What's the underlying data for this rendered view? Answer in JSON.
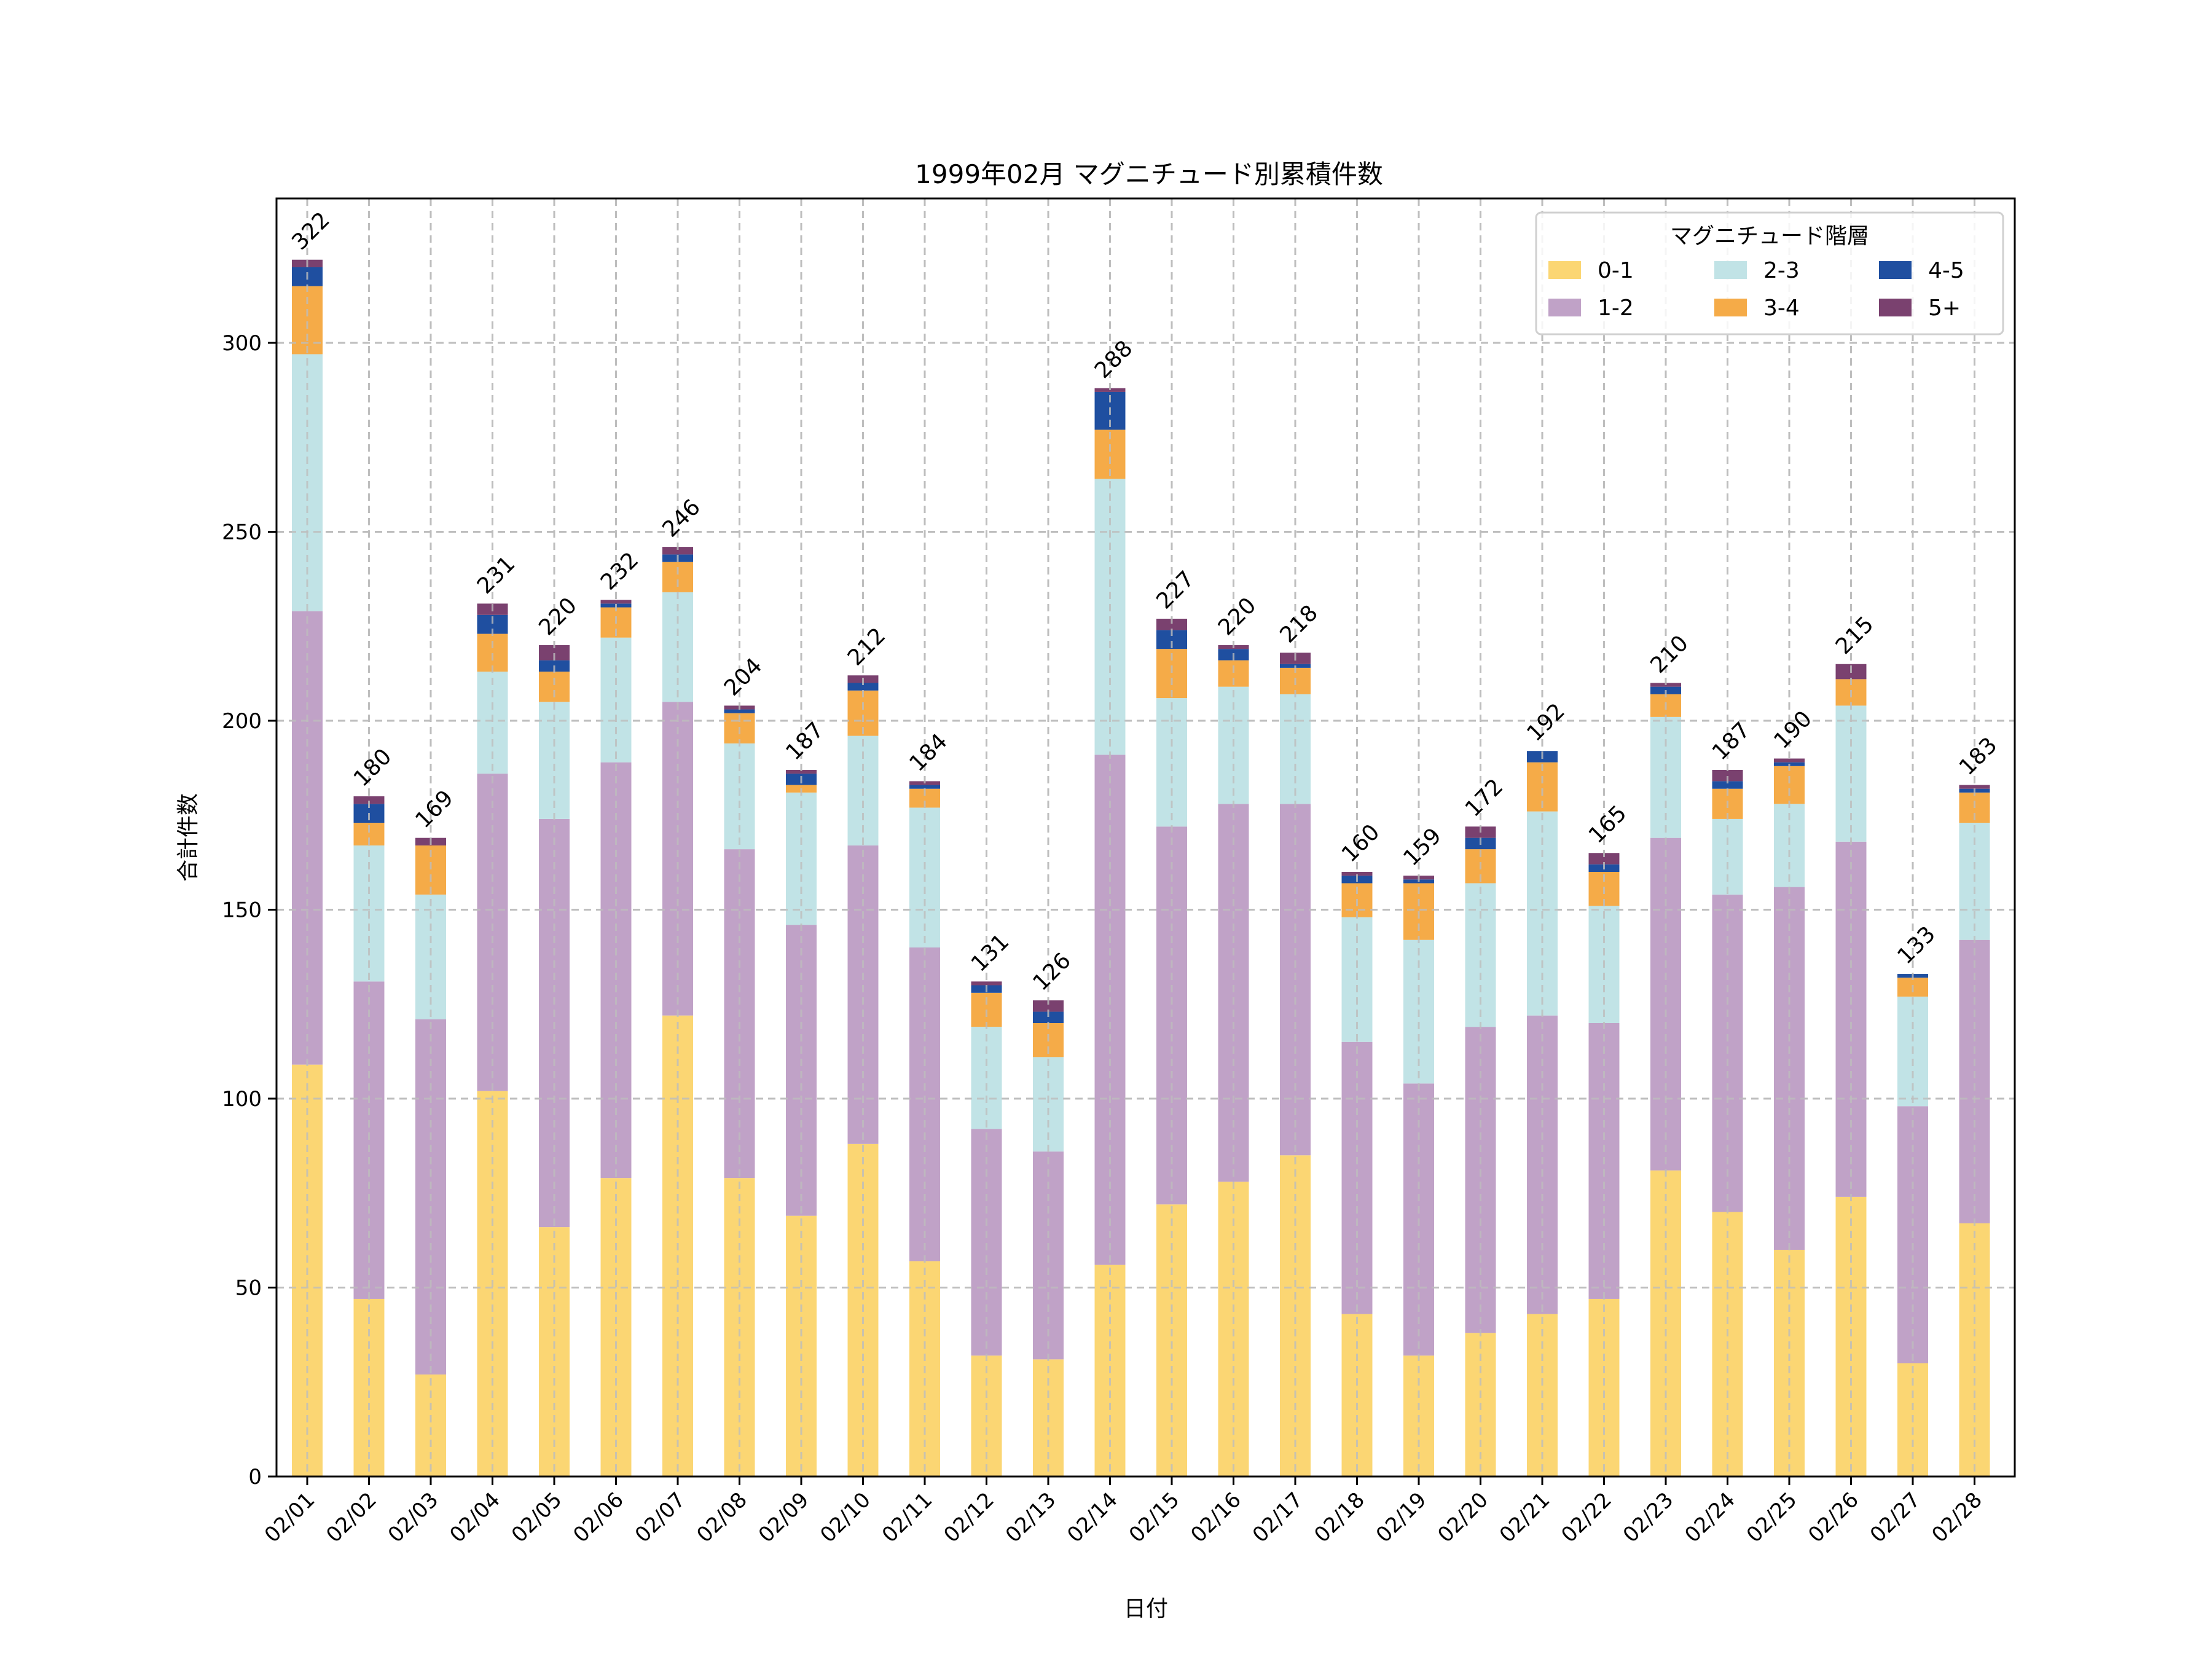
{
  "chart_data": {
    "type": "bar",
    "stacked": true,
    "title": "1999年02月 マグニチュード別累積件数",
    "xlabel": "日付",
    "ylabel": "合計件数",
    "ylim": [
      0,
      338
    ],
    "yticks": [
      0,
      50,
      100,
      150,
      200,
      250,
      300
    ],
    "grid": true,
    "legend": {
      "title": "マグニチュード階層",
      "placement": "top-right",
      "columns": 3
    },
    "categories": [
      "02/01",
      "02/02",
      "02/03",
      "02/04",
      "02/05",
      "02/06",
      "02/07",
      "02/08",
      "02/09",
      "02/10",
      "02/11",
      "02/12",
      "02/13",
      "02/14",
      "02/15",
      "02/16",
      "02/17",
      "02/18",
      "02/19",
      "02/20",
      "02/21",
      "02/22",
      "02/23",
      "02/24",
      "02/25",
      "02/26",
      "02/27",
      "02/28"
    ],
    "series": [
      {
        "name": "0-1",
        "color": "#FBD673",
        "values": [
          109,
          47,
          27,
          102,
          66,
          79,
          122,
          79,
          69,
          88,
          57,
          32,
          31,
          56,
          72,
          78,
          85,
          43,
          32,
          38,
          43,
          47,
          81,
          70,
          60,
          74,
          30,
          67
        ]
      },
      {
        "name": "1-2",
        "color": "#C0A2C7",
        "values": [
          120,
          84,
          94,
          84,
          108,
          110,
          83,
          87,
          77,
          79,
          83,
          60,
          55,
          135,
          100,
          100,
          93,
          72,
          72,
          81,
          79,
          73,
          88,
          84,
          96,
          94,
          68,
          75
        ]
      },
      {
        "name": "2-3",
        "color": "#C1E3E6",
        "values": [
          68,
          36,
          33,
          27,
          31,
          33,
          29,
          28,
          35,
          29,
          37,
          27,
          25,
          73,
          34,
          31,
          29,
          33,
          38,
          38,
          54,
          31,
          32,
          20,
          22,
          36,
          29,
          31
        ]
      },
      {
        "name": "3-4",
        "color": "#F5AB48",
        "values": [
          18,
          6,
          13,
          10,
          8,
          8,
          8,
          8,
          2,
          12,
          5,
          9,
          9,
          13,
          13,
          7,
          7,
          9,
          15,
          9,
          13,
          9,
          6,
          8,
          10,
          7,
          5,
          8
        ]
      },
      {
        "name": "4-5",
        "color": "#1F4FA0",
        "values": [
          5,
          5,
          0,
          5,
          3,
          1,
          2,
          1,
          3,
          2,
          1,
          2,
          3,
          10,
          5,
          3,
          1,
          2,
          1,
          3,
          3,
          2,
          2,
          2,
          1,
          0,
          1,
          1
        ]
      },
      {
        "name": "5+",
        "color": "#7A416F",
        "values": [
          2,
          2,
          2,
          3,
          4,
          1,
          2,
          1,
          1,
          2,
          1,
          1,
          3,
          1,
          3,
          1,
          3,
          1,
          1,
          3,
          0,
          3,
          1,
          3,
          1,
          4,
          0,
          1
        ]
      }
    ],
    "totals": [
      322,
      180,
      169,
      231,
      220,
      232,
      246,
      204,
      187,
      212,
      184,
      131,
      126,
      288,
      227,
      220,
      218,
      160,
      159,
      172,
      192,
      165,
      210,
      187,
      190,
      215,
      133,
      183
    ]
  }
}
